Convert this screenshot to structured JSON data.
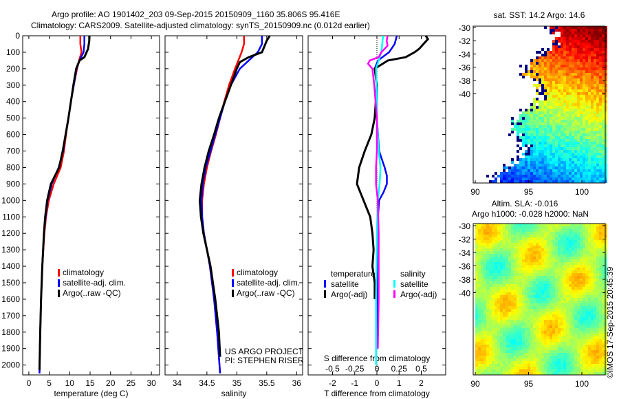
{
  "title": {
    "line1": "Argo profile: AO 1901402_203 09-Sep-2015 20150909_1160 35.806S 95.416E",
    "line2": "Climatology: CARS2009. Satellite-adjusted climatology: synTS_20150909.nc (0.012d earlier)"
  },
  "colors": {
    "clim": "#ff0000",
    "sat": "#0000ff",
    "argo": "#000000",
    "ssat": "#00ffff",
    "sargo": "#ff00ff"
  },
  "chart_data": [
    {
      "type": "line",
      "xlabel": "temperature (deg C)",
      "xlim": [
        -1.5,
        32
      ],
      "xticks": [
        0,
        5,
        10,
        15,
        20,
        25,
        30
      ],
      "ylim": [
        2060,
        0
      ],
      "yticks": [
        0,
        100,
        200,
        300,
        400,
        500,
        600,
        700,
        800,
        900,
        1000,
        1100,
        1200,
        1300,
        1400,
        1500,
        1600,
        1700,
        1800,
        1900,
        2000
      ],
      "legend": [
        "climatology",
        "satellite-adj. clim.",
        "Argo(..raw -QC)"
      ],
      "series": [
        {
          "name": "climatology",
          "color": "clim",
          "depth": [
            0,
            50,
            100,
            150,
            200,
            300,
            400,
            500,
            600,
            700,
            800,
            900,
            1000,
            1100,
            1200,
            1400,
            1600,
            1800,
            2050
          ],
          "values": [
            12.6,
            12.6,
            12.9,
            12.3,
            11.8,
            11.0,
            10.3,
            9.7,
            9.1,
            8.6,
            7.8,
            6.1,
            4.9,
            4.2,
            3.8,
            3.3,
            3.0,
            2.8,
            2.6
          ]
        },
        {
          "name": "satellite-adj. clim.",
          "color": "sat",
          "depth": [
            0,
            50,
            100,
            150,
            200,
            300,
            400,
            500,
            600,
            700,
            800,
            900,
            1000,
            1100,
            1200,
            1400,
            1600,
            1800,
            2050
          ],
          "values": [
            13.6,
            13.6,
            13.4,
            12.4,
            11.7,
            11.0,
            10.3,
            9.7,
            9.0,
            8.4,
            7.3,
            5.6,
            4.6,
            4.1,
            3.7,
            3.3,
            3.0,
            2.8,
            2.6
          ]
        },
        {
          "name": "Argo(..raw -QC)",
          "color": "argo",
          "depth": [
            0,
            30,
            80,
            130,
            150,
            200,
            300,
            400,
            500,
            600,
            700,
            800,
            900,
            1000,
            1100,
            1200,
            1400,
            1600,
            1800,
            2030
          ],
          "values": [
            14.8,
            14.8,
            14.5,
            13.6,
            12.4,
            11.6,
            10.9,
            10.3,
            9.7,
            9.0,
            8.3,
            7.4,
            5.4,
            4.5,
            4.0,
            3.7,
            3.3,
            3.0,
            2.8,
            2.6
          ]
        }
      ]
    },
    {
      "type": "line",
      "xlabel": "salinity",
      "xlim": [
        33.8,
        36.1
      ],
      "xticks": [
        "34",
        "34.5",
        "35",
        "35.5",
        "36"
      ],
      "ylim": [
        2060,
        0
      ],
      "legend": [
        "climatology",
        "satellite-adj. clim.",
        "Argo(..raw -QC)"
      ],
      "annotations": [
        "US ARGO PROJECT",
        "PI: STEPHEN RISER"
      ],
      "series": [
        {
          "name": "climatology",
          "color": "clim",
          "depth": [
            0,
            50,
            100,
            200,
            300,
            400,
            500,
            600,
            700,
            800,
            900,
            1000,
            1100,
            1200,
            1300,
            1400,
            1600,
            1800,
            2050
          ],
          "values": [
            35.12,
            35.12,
            35.08,
            34.97,
            34.87,
            34.79,
            34.72,
            34.65,
            34.57,
            34.5,
            34.45,
            34.42,
            34.42,
            34.45,
            34.5,
            34.55,
            34.62,
            34.67,
            34.72
          ]
        },
        {
          "name": "satellite-adj. clim.",
          "color": "sat",
          "depth": [
            0,
            50,
            100,
            150,
            200,
            300,
            400,
            500,
            600,
            700,
            800,
            900,
            1000,
            1100,
            1200,
            1300,
            1400,
            1600,
            1800,
            2050
          ],
          "values": [
            35.42,
            35.42,
            35.35,
            35.2,
            35.05,
            34.9,
            34.8,
            34.72,
            34.64,
            34.56,
            34.48,
            34.43,
            34.41,
            34.42,
            34.45,
            34.5,
            34.55,
            34.62,
            34.67,
            34.72
          ]
        },
        {
          "name": "Argo(..raw -QC)",
          "color": "argo",
          "depth": [
            0,
            30,
            100,
            130,
            160,
            200,
            300,
            400,
            500,
            600,
            700,
            800,
            900,
            1000,
            1100,
            1200,
            1300,
            1400,
            1600,
            1800,
            1950
          ],
          "values": [
            35.55,
            35.5,
            35.42,
            35.2,
            35.05,
            35.0,
            34.9,
            34.8,
            34.7,
            34.62,
            34.53,
            34.46,
            34.41,
            34.38,
            34.4,
            34.44,
            34.5,
            34.56,
            34.64,
            34.7,
            34.72
          ]
        }
      ]
    },
    {
      "type": "line",
      "xlabel": "T difference from climatology",
      "xlabel2": "S difference from climatology",
      "xlim": [
        -3.1,
        3.1
      ],
      "xticks": [
        "-2",
        "-1",
        "0",
        "1",
        "2"
      ],
      "sticks": [
        "-0.5",
        "-0.25",
        "0",
        "0.25",
        "0.5"
      ],
      "ylim": [
        2060,
        0
      ],
      "legend_t": {
        "title": "temperature",
        "items": [
          "satellite",
          "Argo(-adj)"
        ]
      },
      "legend_s": {
        "title": "salinity",
        "items": [
          "satellite",
          "Argo(-adj)"
        ]
      },
      "series": [
        {
          "name": "T satellite",
          "color": "sat",
          "unit": "T",
          "depth": [
            0,
            50,
            100,
            150,
            200,
            300,
            500,
            700,
            800,
            850,
            900,
            950,
            1000,
            1100,
            1300,
            1500,
            1900
          ],
          "values": [
            0.9,
            0.8,
            0.55,
            0.05,
            -0.1,
            0,
            0,
            0.1,
            0.35,
            0.45,
            0.45,
            0.3,
            0.1,
            0.05,
            0.03,
            0.02,
            0.0
          ]
        },
        {
          "name": "T Argo(-adj)",
          "color": "argo",
          "unit": "T",
          "depth": [
            0,
            20,
            50,
            80,
            100,
            130,
            150,
            200,
            300,
            400,
            500,
            600,
            700,
            800,
            900,
            950,
            1000,
            1100,
            1200,
            1300,
            1400,
            1500,
            1600
          ],
          "values": [
            2.2,
            2.3,
            2.1,
            1.9,
            1.7,
            1.3,
            0.5,
            -0.1,
            0,
            -0.05,
            -0.1,
            -0.25,
            -0.55,
            -0.8,
            -0.9,
            -0.75,
            -0.6,
            -0.3,
            -0.2,
            -0.15,
            -0.2,
            -0.1,
            -0.1
          ]
        },
        {
          "name": "S satellite",
          "color": "ssat",
          "unit": "S",
          "depth": [
            0,
            50,
            100,
            150,
            200,
            300,
            500,
            700,
            800,
            900,
            1000,
            1200,
            1600,
            2000
          ],
          "values": [
            0.07,
            0.06,
            0.05,
            0.02,
            -0.01,
            -0.005,
            0,
            0.02,
            0.04,
            0.03,
            0.01,
            0.0,
            -0.01,
            -0.01
          ]
        },
        {
          "name": "S Argo(-adj)",
          "color": "sargo",
          "unit": "S",
          "depth": [
            0,
            30,
            60,
            100,
            130,
            150,
            170,
            200,
            300,
            500,
            700,
            800,
            900,
            950,
            1000,
            1200,
            1600,
            1900
          ],
          "values": [
            0.12,
            0.11,
            0.12,
            0.05,
            0.02,
            -0.08,
            -0.1,
            -0.05,
            -0.03,
            0,
            0.0,
            -0.01,
            -0.01,
            0.0,
            0.01,
            0.02,
            0.02,
            0.01
          ]
        }
      ]
    }
  ],
  "maps": [
    {
      "title": "sat. SST: 14.2 Argo: 14.6",
      "lat_ticks": [
        "-30",
        "-32",
        "-34",
        "-36",
        "-38",
        "-40"
      ],
      "lon_ticks": [
        "90",
        "95",
        "100"
      ]
    },
    {
      "title": "Altim. SLA: -0.016",
      "subtitle": "Argo h1000: -0.028 h2000: NaN",
      "lat_ticks": [
        "-30",
        "-32",
        "-34",
        "-36",
        "-38",
        "-40"
      ],
      "lon_ticks": [
        "90",
        "95",
        "100"
      ]
    }
  ],
  "credit": "©IMOS 17-Sep-2015 20:45:39"
}
